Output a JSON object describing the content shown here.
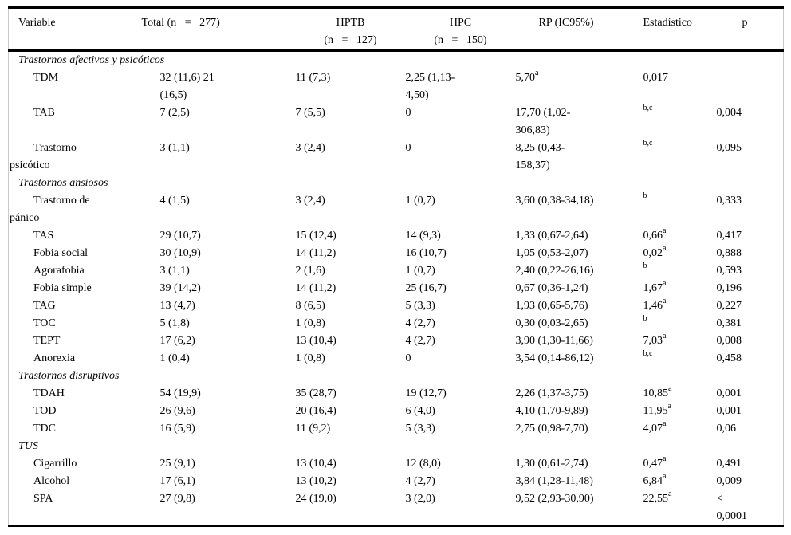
{
  "table": {
    "columns": {
      "variable": {
        "label": "Variable"
      },
      "total": {
        "label": "Total (n   =   277)"
      },
      "hptb": {
        "label": "HPTB",
        "sub": "(n   =   127)"
      },
      "hpc": {
        "label": "HPC",
        "sub": "(n   =   150)"
      },
      "rp": {
        "label": "RP (IC95%)"
      },
      "est": {
        "label": "Estadístico"
      },
      "p": {
        "label": "p"
      }
    },
    "sections": [
      {
        "title": "Trastornos afectivos y psicóticos",
        "rows": [
          {
            "variable": "TDM",
            "total": "32 (11,6) 21\n(16,5)",
            "hptb": "11 (7,3)",
            "hpc": "2,25 (1,13-\n4,50)",
            "rp": "5,70",
            "rp_sup": "a",
            "est": "0,017",
            "est_sup": "",
            "p": ""
          },
          {
            "variable": "TAB",
            "total": "7 (2,5)",
            "hptb": "7 (5,5)",
            "hpc": "0",
            "rp": "17,70 (1,02-\n306,83)",
            "rp_sup": "",
            "est": "",
            "est_sup": "b,c",
            "p": "0,004"
          },
          {
            "variable": "Trastorno\npsicótico",
            "total": "3 (1,1)",
            "hptb": "3 (2,4)",
            "hpc": "0",
            "rp": "8,25 (0,43-\n158,37)",
            "rp_sup": "",
            "est": "",
            "est_sup": "b,c",
            "p": "0,095"
          }
        ]
      },
      {
        "title": "Trastornos ansiosos",
        "rows": [
          {
            "variable": "Trastorno de\npánico",
            "total": "4 (1,5)",
            "hptb": "3 (2,4)",
            "hpc": "1 (0,7)",
            "rp": "3,60 (0,38-34,18)",
            "rp_sup": "",
            "est": "",
            "est_sup": "b",
            "p": "0,333"
          },
          {
            "variable": "TAS",
            "total": "29 (10,7)",
            "hptb": "15 (12,4)",
            "hpc": "14 (9,3)",
            "rp": "1,33 (0,67-2,64)",
            "rp_sup": "",
            "est": "0,66",
            "est_sup": "a",
            "p": "0,417"
          },
          {
            "variable": "Fobia social",
            "total": "30 (10,9)",
            "hptb": "14 (11,2)",
            "hpc": "16 (10,7)",
            "rp": "1,05 (0,53-2,07)",
            "rp_sup": "",
            "est": "0,02",
            "est_sup": "a",
            "p": "0,888"
          },
          {
            "variable": "Agorafobia",
            "total": "3 (1,1)",
            "hptb": "2 (1,6)",
            "hpc": "1 (0,7)",
            "rp": "2,40 (0,22-26,16)",
            "rp_sup": "",
            "est": "",
            "est_sup": "b",
            "p": "0,593"
          },
          {
            "variable": "Fobia simple",
            "total": "39 (14,2)",
            "hptb": "14 (11,2)",
            "hpc": "25 (16,7)",
            "rp": "0,67 (0,36-1,24)",
            "rp_sup": "",
            "est": "1,67",
            "est_sup": "a",
            "p": "0,196"
          },
          {
            "variable": "TAG",
            "total": "13 (4,7)",
            "hptb": "8 (6,5)",
            "hpc": "5 (3,3)",
            "rp": "1,93 (0,65-5,76)",
            "rp_sup": "",
            "est": "1,46",
            "est_sup": "a",
            "p": "0,227"
          },
          {
            "variable": "TOC",
            "total": "5 (1,8)",
            "hptb": "1 (0,8)",
            "hpc": "4 (2,7)",
            "rp": "0,30 (0,03-2,65)",
            "rp_sup": "",
            "est": "",
            "est_sup": "b",
            "p": "0,381"
          },
          {
            "variable": "TEPT",
            "total": "17 (6,2)",
            "hptb": "13 (10,4)",
            "hpc": "4 (2,7)",
            "rp": "3,90 (1,30-11,66)",
            "rp_sup": "",
            "est": "7,03",
            "est_sup": "a",
            "p": "0,008"
          },
          {
            "variable": "Anorexia",
            "total": "1 (0,4)",
            "hptb": "1 (0,8)",
            "hpc": "0",
            "rp": "3,54 (0,14-86,12)",
            "rp_sup": "",
            "est": "",
            "est_sup": "b,c",
            "p": "0,458"
          }
        ]
      },
      {
        "title": "Trastornos disruptivos",
        "rows": [
          {
            "variable": "TDAH",
            "total": "54 (19,9)",
            "hptb": "35 (28,7)",
            "hpc": "19 (12,7)",
            "rp": "2,26 (1,37-3,75)",
            "rp_sup": "",
            "est": "10,85",
            "est_sup": "a",
            "p": "0,001"
          },
          {
            "variable": "TOD",
            "total": "26 (9,6)",
            "hptb": "20 (16,4)",
            "hpc": "6 (4,0)",
            "rp": "4,10 (1,70-9,89)",
            "rp_sup": "",
            "est": "11,95",
            "est_sup": "a",
            "p": "0,001"
          },
          {
            "variable": "TDC",
            "total": "16 (5,9)",
            "hptb": "11 (9,2)",
            "hpc": "5 (3,3)",
            "rp": "2,75 (0,98-7,70)",
            "rp_sup": "",
            "est": "4,07",
            "est_sup": "a",
            "p": "0,06"
          }
        ]
      },
      {
        "title": "TUS",
        "rows": [
          {
            "variable": "Cigarrillo",
            "total": "25 (9,1)",
            "hptb": "13 (10,4)",
            "hpc": "12 (8,0)",
            "rp": "1,30 (0,61-2,74)",
            "rp_sup": "",
            "est": "0,47",
            "est_sup": "a",
            "p": "0,491"
          },
          {
            "variable": "Alcohol",
            "total": "17 (6,1)",
            "hptb": "13 (10,2)",
            "hpc": "4 (2,7)",
            "rp": "3,84 (1,28-11,48)",
            "rp_sup": "",
            "est": "6,84",
            "est_sup": "a",
            "p": "0,009"
          },
          {
            "variable": "SPA",
            "total": "27 (9,8)",
            "hptb": "24 (19,0)",
            "hpc": "3 (2,0)",
            "rp": "9,52 (2,93-30,90)",
            "rp_sup": "",
            "est": "22,55",
            "est_sup": "a",
            "p": "<\n0,0001"
          }
        ]
      }
    ]
  }
}
